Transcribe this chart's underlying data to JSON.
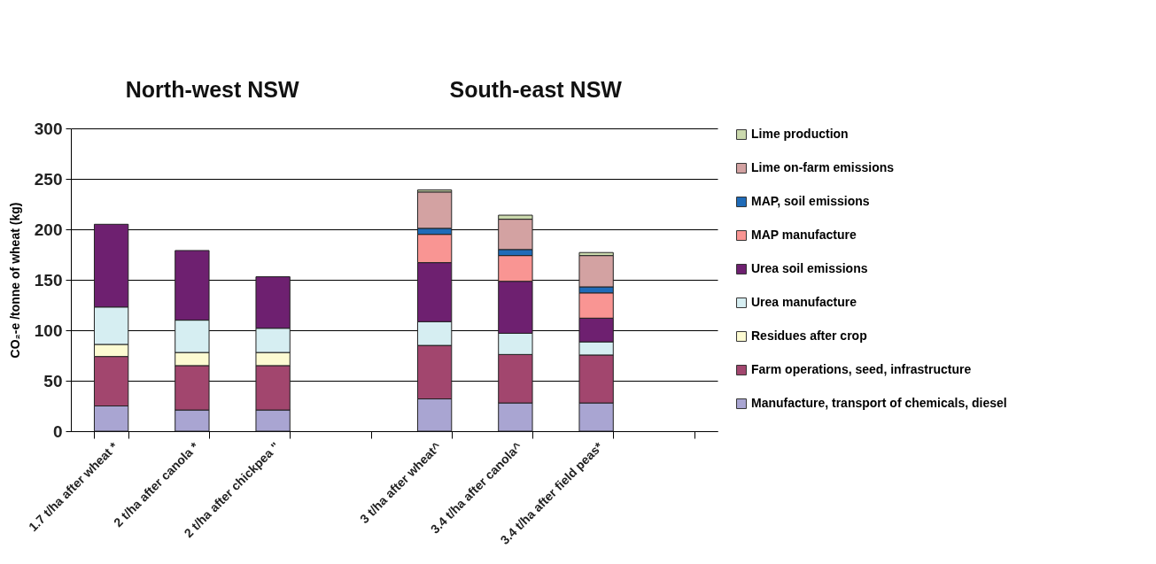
{
  "chart_data": {
    "type": "bar",
    "stacked": true,
    "ylabel": "CO₂-e /tonne of wheat (kg)",
    "annotations": [
      "North-west NSW",
      "South-east NSW"
    ],
    "categories": [
      "1.7 t/ha after wheat *",
      "2 t/ha after canola *",
      "2 t/ha after chickpea \"",
      null,
      "3 t/ha after wheat^",
      "3.4 t/ha after canola^",
      "3.4 t/ha after field peas*",
      null
    ],
    "series": [
      {
        "name": "Manufacture, transport of chemicals, diesel",
        "color": "#a9a5d2",
        "values": [
          25,
          21,
          21,
          null,
          32,
          28,
          28,
          null
        ]
      },
      {
        "name": "Farm operations, seed, infrastructure",
        "color": "#a2466e",
        "values": [
          49,
          44,
          44,
          null,
          53,
          48,
          47.5,
          null
        ]
      },
      {
        "name": "Residues after crop",
        "color": "#fdfbd2",
        "values": [
          12,
          13,
          13,
          null,
          null,
          null,
          null,
          null
        ]
      },
      {
        "name": "Urea manufacture",
        "color": "#d6eef2",
        "values": [
          37,
          32,
          24,
          null,
          23.5,
          21,
          13,
          null
        ]
      },
      {
        "name": "Urea soil emissions",
        "color": "#6e2070",
        "values": [
          82,
          69,
          51,
          null,
          58.5,
          51.5,
          23.5,
          null
        ]
      },
      {
        "name": "MAP manufacture",
        "color": "#f99593",
        "values": [
          null,
          null,
          null,
          null,
          28,
          25.5,
          25,
          null
        ]
      },
      {
        "name": "MAP, soil emissions",
        "color": "#1f6bb8",
        "values": [
          null,
          null,
          null,
          null,
          6,
          6,
          6,
          null
        ]
      },
      {
        "name": "Lime on-farm emissions",
        "color": "#d3a2a2",
        "values": [
          null,
          null,
          null,
          null,
          36,
          30,
          31,
          null
        ]
      },
      {
        "name": "Lime production",
        "color": "#cbd9ad",
        "values": [
          null,
          null,
          null,
          null,
          2,
          4,
          3,
          null
        ]
      }
    ],
    "ylim": [
      0,
      300
    ],
    "yticks": [
      0,
      50,
      100,
      150,
      200,
      250,
      300
    ],
    "grid": "y",
    "legend": "right"
  }
}
